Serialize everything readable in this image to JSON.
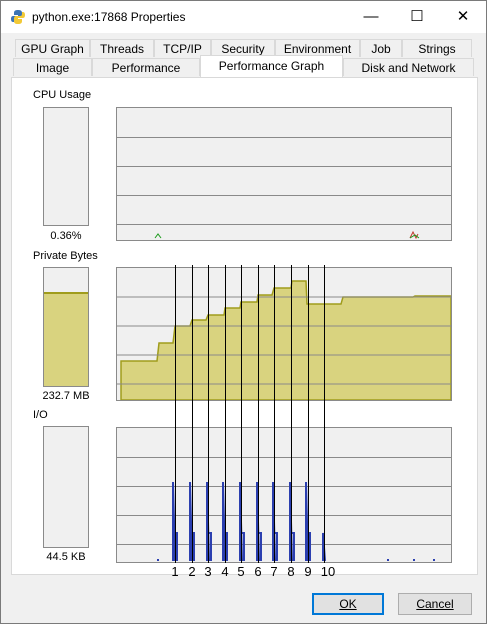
{
  "window": {
    "title": "python.exe:17868 Properties",
    "controls": {
      "minimize": "—",
      "maximize": "☐",
      "close": "✕"
    }
  },
  "tabs": {
    "row1": [
      "GPU Graph",
      "Threads",
      "TCP/IP",
      "Security",
      "Environment",
      "Job",
      "Strings"
    ],
    "row2": [
      "Image",
      "Performance",
      "Performance Graph",
      "Disk and Network"
    ],
    "active": "Performance Graph"
  },
  "cpu": {
    "label": "CPU Usage",
    "value": "0.36%",
    "level": 0.0036
  },
  "private_bytes": {
    "label": "Private Bytes",
    "value": "232.7 MB",
    "level": 0.78
  },
  "io": {
    "label": "I/O",
    "value": "44.5  KB",
    "level": 0
  },
  "annotations": [
    "1",
    "2",
    "3",
    "4",
    "5",
    "6",
    "7",
    "8",
    "9",
    "10"
  ],
  "buttons": {
    "ok": "OK",
    "cancel": "Cancel"
  },
  "colors": {
    "fill": "#d9d37f",
    "line": "#a09c1c",
    "io": "#2b3fb0",
    "grid": "#8a8a8a"
  }
}
